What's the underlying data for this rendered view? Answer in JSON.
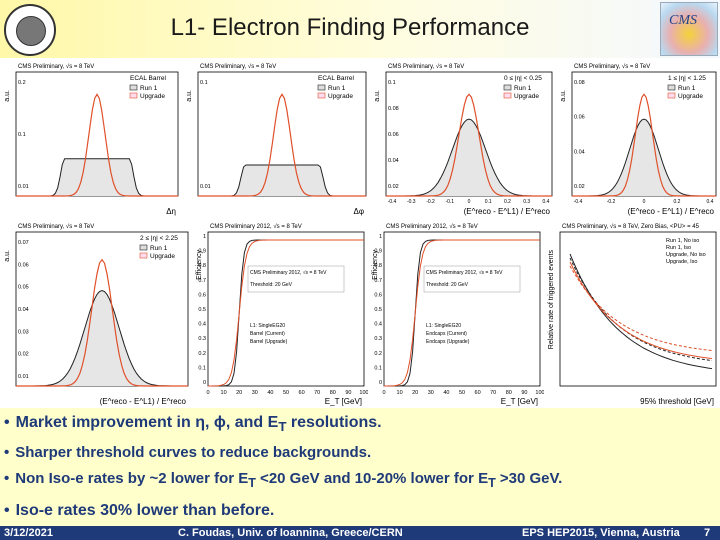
{
  "header": {
    "title": "L1- Electron Finding Performance",
    "cms_logo_text": "CMS"
  },
  "plots": [
    {
      "id": "eta-barrel",
      "cms_label": "CMS Preliminary, √s = 8 TeV",
      "region": "ECAL Barrel",
      "ylabel": "a.u.",
      "xlabel": "Δη",
      "yticks": [
        "0.2",
        "0.1",
        "0.01"
      ],
      "legend": [
        "Run 1",
        "Upgrade"
      ]
    },
    {
      "id": "phi-barrel",
      "cms_label": "CMS Preliminary, √s = 8 TeV",
      "region": "ECAL Barrel",
      "ylabel": "a.u.",
      "xlabel": "Δφ",
      "yticks": [
        "0.1",
        "0.01"
      ],
      "legend": [
        "Run 1",
        "Upgrade"
      ]
    },
    {
      "id": "et-central",
      "cms_label": "CMS Preliminary, √s = 8 TeV",
      "region": "0 ≤ |η| < 0.25",
      "ylabel": "a.u.",
      "xlabel": "(E^reco - E^L1) / E^reco",
      "yticks": [
        "0.1",
        "0.08",
        "0.06",
        "0.04",
        "0.02"
      ],
      "xticks": [
        "-0.4",
        "-0.3",
        "-0.2",
        "-0.1",
        "0",
        "0.1",
        "0.2",
        "0.3",
        "0.4"
      ],
      "legend": [
        "Run 1",
        "Upgrade"
      ]
    },
    {
      "id": "et-mid",
      "cms_label": "CMS Preliminary, √s = 8 TeV",
      "region": "1 ≤ |η| < 1.25",
      "ylabel": "a.u.",
      "xlabel": "(E^reco - E^L1) / E^reco",
      "yticks": [
        "0.08",
        "0.06",
        "0.04",
        "0.02"
      ],
      "xticks": [
        "-0.4",
        "-0.2",
        "0",
        "0.2",
        "0.4"
      ],
      "legend": [
        "Run 1",
        "Upgrade"
      ]
    },
    {
      "id": "et-forward",
      "cms_label": "CMS Preliminary, √s = 8 TeV",
      "region": "2 ≤ |η| < 2.25",
      "ylabel": "a.u.",
      "xlabel": "(E^reco - E^L1) / E^reco",
      "yticks": [
        "0.07",
        "0.06",
        "0.05",
        "0.04",
        "0.03",
        "0.02",
        "0.01"
      ],
      "legend": [
        "Run 1",
        "Upgrade"
      ]
    },
    {
      "id": "turnon-single",
      "cms_label": "CMS Preliminary 2012, √s = 8 TeV",
      "threshold": "Threshold: 20 GeV",
      "ylabel": "Efficiency",
      "xlabel": "E_T [GeV]",
      "yticks": [
        "1",
        "0.9",
        "0.8",
        "0.7",
        "0.6",
        "0.5",
        "0.4",
        "0.3",
        "0.2",
        "0.1",
        "0"
      ],
      "xticks": [
        "0",
        "10",
        "20",
        "30",
        "40",
        "50",
        "60",
        "70",
        "80",
        "90",
        "100"
      ],
      "legend": [
        "L1: SingleEG20",
        "Barrel (Current)",
        "Barrel (Upgrade)"
      ]
    },
    {
      "id": "turnon-endcap",
      "cms_label": "CMS Preliminary 2012, √s = 8 TeV",
      "threshold": "Threshold: 20 GeV",
      "ylabel": "Efficiency",
      "xlabel": "E_T [GeV]",
      "yticks": [
        "1",
        "0.9",
        "0.8",
        "0.7",
        "0.6",
        "0.5",
        "0.4",
        "0.3",
        "0.2",
        "0.1",
        "0"
      ],
      "xticks": [
        "0",
        "10",
        "20",
        "30",
        "40",
        "50",
        "60",
        "70",
        "80",
        "90",
        "100"
      ],
      "legend": [
        "L1: SingleEG20",
        "Endcaps (Current)",
        "Endcaps (Upgrade)"
      ]
    },
    {
      "id": "rates",
      "cms_label": "CMS Preliminary, √s = 8 TeV, Zero Bias, <PU> = 45",
      "ylabel": "Relative rate of triggered events",
      "xlabel": "95% threshold [GeV]",
      "legend": [
        "Run 1, No iso",
        "Run 1, Iso",
        "Upgrade, No iso",
        "Upgrade, Iso"
      ]
    }
  ],
  "bullets": {
    "b1": "Market improvement in η, ϕ, and  E",
    "b1_sub": "T",
    "b1_end": "  resolutions.",
    "b2": "Sharper threshold curves to reduce backgrounds.",
    "b3_a": "Non Iso-e rates by ~2 lower for E",
    "b3_sub1": "T",
    "b3_b": " <20 GeV and 10-20% lower for E",
    "b3_sub2": "T",
    "b3_c": " >30 GeV.",
    "b4": "Iso-e rates 30% lower than before."
  },
  "footer": {
    "date": "3/12/2021",
    "author": "C. Foudas, Univ. of Ioannina, Greece/CERN",
    "conference": "EPS HEP2015, Vienna, Austria",
    "page": "7"
  },
  "colors": {
    "run1": "#222222",
    "upgrade": "#e0502a",
    "bullet": "#1f3a78",
    "background": "#ffffcc"
  }
}
